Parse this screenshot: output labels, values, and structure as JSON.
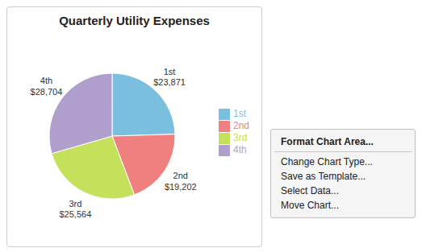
{
  "chart_data": {
    "type": "pie",
    "title": "Quarterly Utility Expenses",
    "categories": [
      "1st",
      "2nd",
      "3rd",
      "4th"
    ],
    "values": [
      23871,
      19202,
      25564,
      28704
    ],
    "value_labels": [
      "$23,871",
      "$19,202",
      "$25,564",
      "$28,704"
    ],
    "data_labels": true,
    "colors": [
      "#7BBFDF",
      "#F08080",
      "#C5E05A",
      "#B09FCC"
    ],
    "legend": "right",
    "annotations": [
      "Format Chart Area...",
      "Change Chart Type...",
      "Save as Template...",
      "Select Data...",
      "Move Chart..."
    ]
  }
}
